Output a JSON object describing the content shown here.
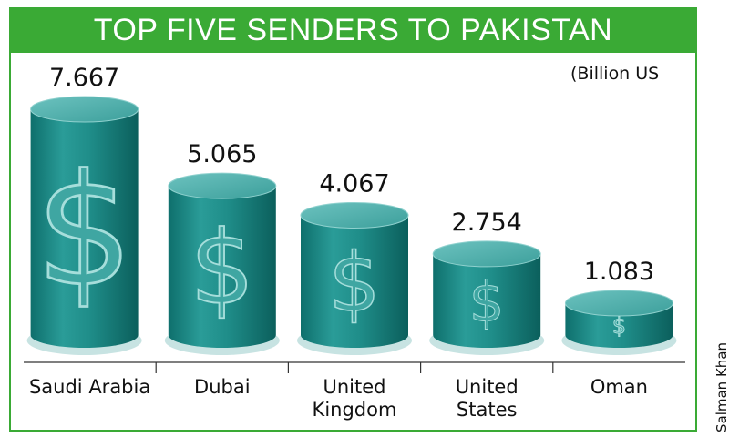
{
  "title": "TOP FIVE SENDERS TO PAKISTAN",
  "unit_note": "(Billion US",
  "credit": "Salman Khan",
  "colors": {
    "frame": "#3aaa35",
    "cylinder_top": "#5fb5b2",
    "cylinder_body": "#1e8e8a",
    "cylinder_dark": "#0d6a67"
  },
  "chart_data": {
    "type": "bar",
    "title": "TOP FIVE SENDERS TO PAKISTAN",
    "ylabel": "(Billion US",
    "categories": [
      "Saudi Arabia",
      "Dubai",
      "United Kingdom",
      "United States",
      "Oman"
    ],
    "category_lines": [
      [
        "Saudi Arabia"
      ],
      [
        "Dubai"
      ],
      [
        "United",
        "Kingdom"
      ],
      [
        "United",
        "States"
      ],
      [
        "Oman"
      ]
    ],
    "values": [
      7.667,
      5.065,
      4.067,
      2.754,
      1.083
    ],
    "value_labels": [
      "7.667",
      "5.065",
      "4.067",
      "2.754",
      "1.083"
    ],
    "ylim": [
      0,
      7.667
    ],
    "grid": false,
    "legend": "none"
  }
}
